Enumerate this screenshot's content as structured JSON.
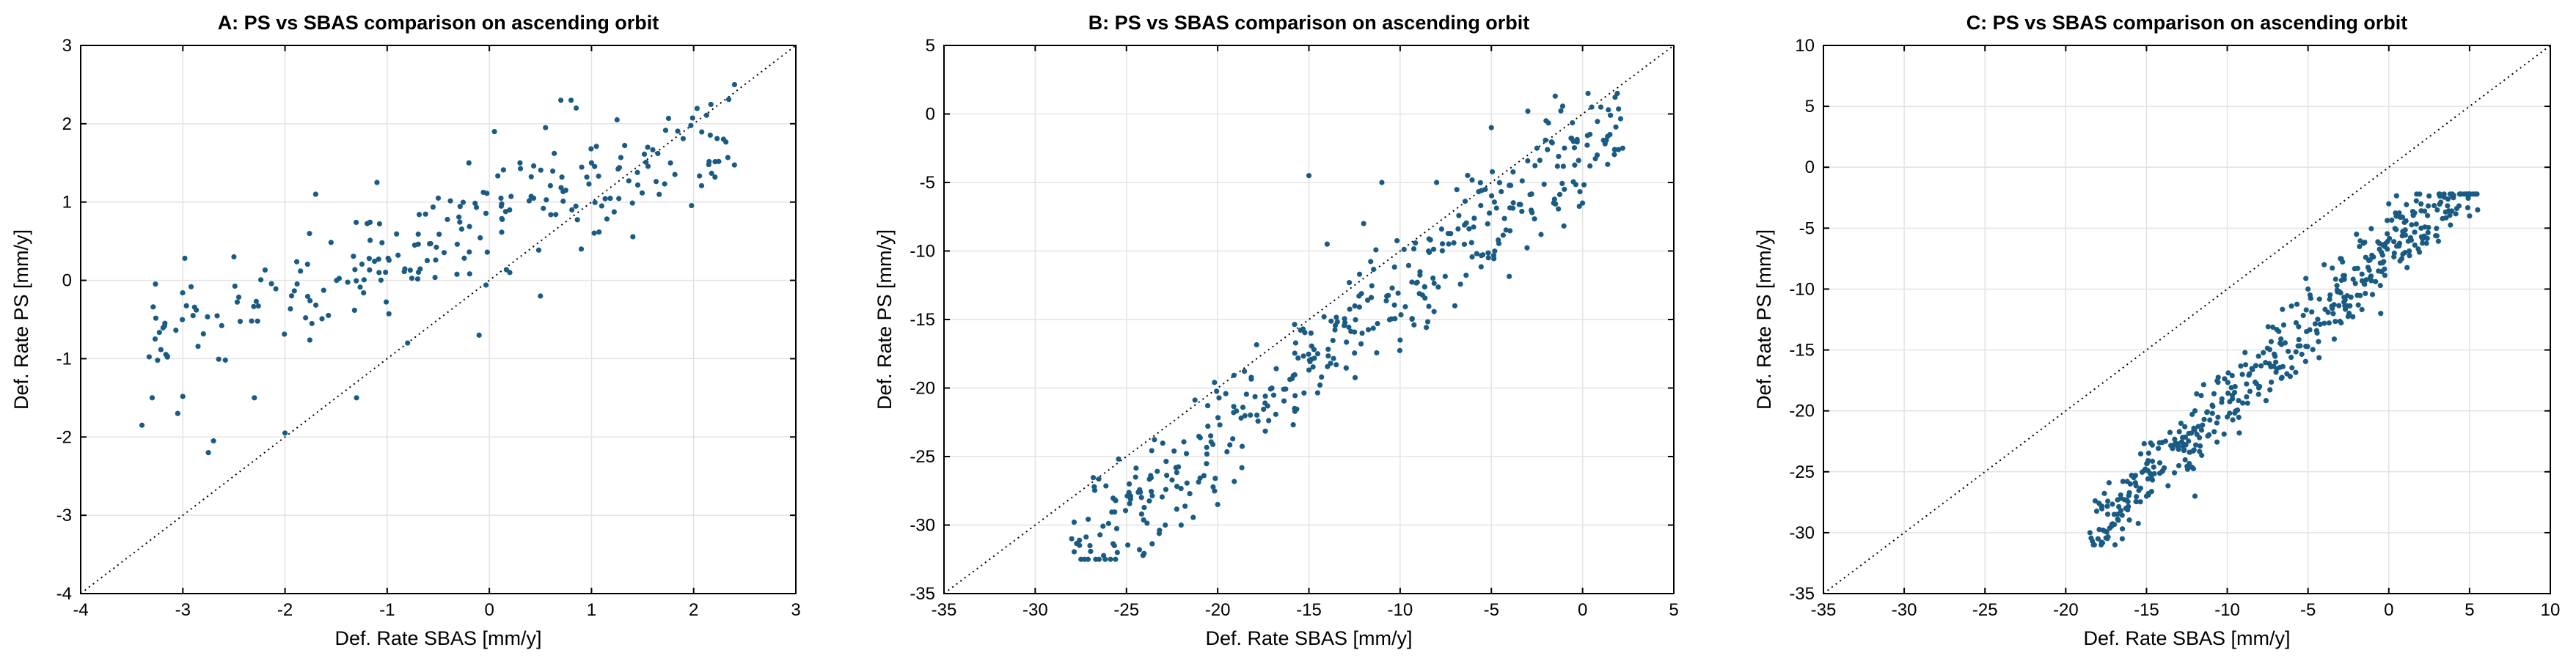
{
  "colors": {
    "points": "#1a5b84",
    "frame": "#000000",
    "grid": "#e3e3e3"
  },
  "chart_data": [
    {
      "type": "scatter",
      "title": "A: PS vs SBAS comparison on ascending orbit",
      "xlabel": "Def. Rate SBAS [mm/y]",
      "ylabel": "Def. Rate PS [mm/y]",
      "xlim": [
        -4,
        3
      ],
      "ylim": [
        -4,
        3
      ],
      "xticks": [
        -4,
        -3,
        -2,
        -1,
        0,
        1,
        2,
        3
      ],
      "yticks": [
        -4,
        -3,
        -2,
        -1,
        0,
        1,
        2,
        3
      ],
      "grid": true,
      "reference_line": "y = x",
      "point_generator": {
        "seed": 11,
        "count": 230,
        "x_range": [
          -3.4,
          2.4
        ],
        "intercept": 0.72,
        "slope": 0.45,
        "spread": 0.55,
        "clamp": [
          -2.25,
          2.5
        ]
      },
      "points": [
        {
          "x": -3.4,
          "y": -1.85
        },
        {
          "x": -3.3,
          "y": -1.5
        },
        {
          "x": -3.05,
          "y": -1.7
        },
        {
          "x": -2.9,
          "y": -0.45
        },
        {
          "x": -2.75,
          "y": -2.2
        },
        {
          "x": -2.7,
          "y": -2.05
        },
        {
          "x": -2.5,
          "y": 0.3
        },
        {
          "x": -2.3,
          "y": -1.5
        },
        {
          "x": -2.0,
          "y": -1.95
        },
        {
          "x": -1.7,
          "y": 1.1
        },
        {
          "x": -1.3,
          "y": -1.5
        },
        {
          "x": -1.1,
          "y": 1.25
        },
        {
          "x": -0.5,
          "y": 1.05
        },
        {
          "x": -0.2,
          "y": 1.5
        },
        {
          "x": 0.05,
          "y": 1.9
        },
        {
          "x": 0.3,
          "y": 1.5
        },
        {
          "x": 0.55,
          "y": 1.95
        },
        {
          "x": 0.7,
          "y": 2.3
        },
        {
          "x": 0.8,
          "y": 2.3
        },
        {
          "x": 0.85,
          "y": 2.2
        },
        {
          "x": 1.0,
          "y": 1.5
        },
        {
          "x": 1.25,
          "y": 2.05
        },
        {
          "x": 1.55,
          "y": 1.7
        },
        {
          "x": 2.4,
          "y": 2.5
        },
        {
          "x": 0.2,
          "y": 0.1
        },
        {
          "x": 0.5,
          "y": -0.2
        },
        {
          "x": 0.9,
          "y": 0.4
        },
        {
          "x": 1.1,
          "y": 0.95
        },
        {
          "x": -0.1,
          "y": -0.7
        },
        {
          "x": -0.8,
          "y": -0.8
        }
      ]
    },
    {
      "type": "scatter",
      "title": "B: PS vs SBAS comparison on ascending orbit",
      "xlabel": "Def. Rate SBAS [mm/y]",
      "ylabel": "Def. Rate PS [mm/y]",
      "xlim": [
        -35,
        5
      ],
      "ylim": [
        -35,
        5
      ],
      "xticks": [
        -35,
        -30,
        -25,
        -20,
        -15,
        -10,
        -5,
        0,
        5
      ],
      "yticks": [
        -35,
        -30,
        -25,
        -20,
        -15,
        -10,
        -5,
        0,
        5
      ],
      "grid": true,
      "reference_line": "y = x",
      "point_generator": {
        "seed": 23,
        "count": 390,
        "x_range": [
          -28,
          2.2
        ],
        "intercept": -2.5,
        "slope": 1.05,
        "spread": 3.6,
        "clamp": [
          -32.5,
          1.5
        ]
      },
      "points": [
        {
          "x": -28,
          "y": -31
        },
        {
          "x": -27,
          "y": -31.5
        },
        {
          "x": -26.5,
          "y": -32.5
        },
        {
          "x": -25.5,
          "y": -32
        },
        {
          "x": -24.5,
          "y": -26.5
        },
        {
          "x": -22,
          "y": -30
        },
        {
          "x": -20,
          "y": -28.5
        },
        {
          "x": -15,
          "y": -4.5
        },
        {
          "x": -14,
          "y": -9.5
        },
        {
          "x": -12,
          "y": -8
        },
        {
          "x": -11,
          "y": -5
        },
        {
          "x": -10,
          "y": -16.5
        },
        {
          "x": -8,
          "y": -5
        },
        {
          "x": -7,
          "y": -14
        },
        {
          "x": -5,
          "y": -1
        },
        {
          "x": -3,
          "y": 0.2
        },
        {
          "x": -2,
          "y": -0.5
        },
        {
          "x": -1.5,
          "y": 1.3
        },
        {
          "x": -1,
          "y": -5.5
        },
        {
          "x": 0,
          "y": -6.5
        },
        {
          "x": 0.5,
          "y": 0.5
        },
        {
          "x": 1,
          "y": 0.5
        },
        {
          "x": 1.5,
          "y": -1.5
        },
        {
          "x": 2.2,
          "y": -2.5
        },
        {
          "x": -0.5,
          "y": -2
        },
        {
          "x": -2.5,
          "y": -2.5
        },
        {
          "x": 0.8,
          "y": -3
        }
      ]
    },
    {
      "type": "scatter",
      "title": "C: PS vs SBAS comparison on ascending orbit",
      "xlabel": "Def. Rate SBAS [mm/y]",
      "ylabel": "Def. Rate PS [mm/y]",
      "xlim": [
        -35,
        10
      ],
      "ylim": [
        -35,
        10
      ],
      "xticks": [
        -35,
        -30,
        -25,
        -20,
        -15,
        -10,
        -5,
        0,
        5,
        10
      ],
      "yticks": [
        -35,
        -30,
        -25,
        -20,
        -15,
        -10,
        -5,
        0,
        5,
        10
      ],
      "grid": true,
      "reference_line": "y = x",
      "point_generator": {
        "seed": 37,
        "count": 470,
        "x_range": [
          -18.5,
          5.5
        ],
        "intercept": -6.8,
        "slope": 1.26,
        "spread": 2.6,
        "clamp": [
          -31,
          -2.2
        ]
      },
      "points": [
        {
          "x": -18.5,
          "y": -30
        },
        {
          "x": -18,
          "y": -30.5
        },
        {
          "x": -17,
          "y": -28.5
        },
        {
          "x": -16.5,
          "y": -30.5
        },
        {
          "x": -16,
          "y": -26
        },
        {
          "x": -15,
          "y": -27
        },
        {
          "x": -13,
          "y": -24.5
        },
        {
          "x": -12,
          "y": -27
        },
        {
          "x": -10,
          "y": -20.5
        },
        {
          "x": -8,
          "y": -18
        },
        {
          "x": -7,
          "y": -16
        },
        {
          "x": -5,
          "y": -10
        },
        {
          "x": -4,
          "y": -8
        },
        {
          "x": -3,
          "y": -7.5
        },
        {
          "x": -2,
          "y": -5.5
        },
        {
          "x": 0,
          "y": -3
        },
        {
          "x": 1,
          "y": -7
        },
        {
          "x": 2,
          "y": -5
        },
        {
          "x": 3,
          "y": -3.5
        },
        {
          "x": 4,
          "y": -2.5
        },
        {
          "x": 4.5,
          "y": -2.2
        },
        {
          "x": 5,
          "y": -4
        },
        {
          "x": 5.5,
          "y": -3.5
        },
        {
          "x": -0.5,
          "y": -12
        }
      ]
    }
  ]
}
